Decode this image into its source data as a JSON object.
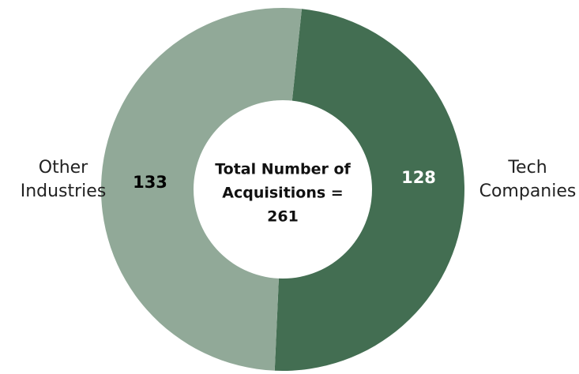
{
  "chart_data": {
    "type": "pie",
    "variant": "donut",
    "slices": [
      {
        "label_lines": [
          "Tech",
          "Companies"
        ],
        "value": 128,
        "value_label": "128",
        "color": "#436e52",
        "value_text_color": "#ffffff"
      },
      {
        "label_lines": [
          "Other",
          "Industries"
        ],
        "value": 133,
        "value_label": "133",
        "color": "#91a998",
        "value_text_color": "#000000"
      }
    ],
    "center_label_lines": [
      "Total Number of",
      "Acquisitions =",
      "261"
    ],
    "total": 261,
    "legend": "none",
    "label_color": "#222222",
    "start_angle_deg": 6
  }
}
